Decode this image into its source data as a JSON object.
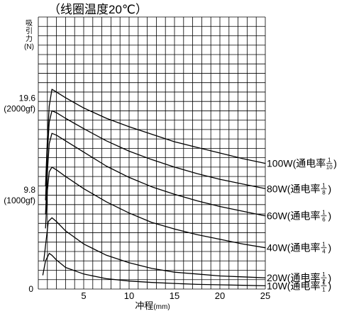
{
  "chart_data": {
    "type": "line",
    "title": "（线圈温度20℃）",
    "ylabel_chars": [
      "吸",
      "引",
      "力",
      "(N)"
    ],
    "xlabel": "冲程",
    "xlabel_unit": "(mm)",
    "xlim": [
      0,
      25
    ],
    "ylim": [
      0,
      29
    ],
    "x_ticks": [
      {
        "value": 5,
        "label": "5"
      },
      {
        "value": 10,
        "label": "10"
      },
      {
        "value": 15,
        "label": "15"
      },
      {
        "value": 20,
        "label": "20"
      },
      {
        "value": 25,
        "label": "25"
      }
    ],
    "y_ticks": [
      {
        "value": 0,
        "label": "0",
        "sub": ""
      },
      {
        "value": 9.8,
        "label": "9.8",
        "sub": "(1000gf)"
      },
      {
        "value": 19.6,
        "label": "19.6",
        "sub": "(2000gf)"
      }
    ],
    "grid": true,
    "series": [
      {
        "name": "100W",
        "duty_num": "1",
        "duty_den": "10",
        "points": [
          [
            0.8,
            11.0
          ],
          [
            1.0,
            16.0
          ],
          [
            1.2,
            19.5
          ],
          [
            1.5,
            21.3
          ],
          [
            2,
            21.0
          ],
          [
            3,
            20.4
          ],
          [
            5,
            19.3
          ],
          [
            7.5,
            18.2
          ],
          [
            10,
            17.3
          ],
          [
            12.5,
            16.5
          ],
          [
            15,
            15.7
          ],
          [
            17.5,
            15.1
          ],
          [
            20,
            14.5
          ],
          [
            22.5,
            13.9
          ],
          [
            25,
            13.4
          ]
        ]
      },
      {
        "name": "80W",
        "duty_num": "1",
        "duty_den": "8",
        "points": [
          [
            0.8,
            9.5
          ],
          [
            1.0,
            14.5
          ],
          [
            1.2,
            17.8
          ],
          [
            1.5,
            19.0
          ],
          [
            2,
            18.8
          ],
          [
            3,
            18.2
          ],
          [
            5,
            17.1
          ],
          [
            7.5,
            15.8
          ],
          [
            10,
            14.7
          ],
          [
            12.5,
            13.8
          ],
          [
            15,
            13.0
          ],
          [
            17.5,
            12.3
          ],
          [
            20,
            11.7
          ],
          [
            22.5,
            11.2
          ],
          [
            25,
            10.7
          ]
        ]
      },
      {
        "name": "60W",
        "duty_num": "1",
        "duty_den": "6",
        "points": [
          [
            0.8,
            8.0
          ],
          [
            1.0,
            12.5
          ],
          [
            1.2,
            15.5
          ],
          [
            1.5,
            16.6
          ],
          [
            2,
            16.4
          ],
          [
            3,
            15.8
          ],
          [
            5,
            14.6
          ],
          [
            7.5,
            13.1
          ],
          [
            10,
            11.9
          ],
          [
            12.5,
            10.9
          ],
          [
            15,
            10.1
          ],
          [
            17.5,
            9.4
          ],
          [
            20,
            8.8
          ],
          [
            22.5,
            8.3
          ],
          [
            25,
            7.8
          ]
        ]
      },
      {
        "name": "40W",
        "duty_num": "1",
        "duty_den": "4",
        "points": [
          [
            0.8,
            6.5
          ],
          [
            1.0,
            10.5
          ],
          [
            1.2,
            12.5
          ],
          [
            1.5,
            13.0
          ],
          [
            2,
            12.7
          ],
          [
            3,
            12.0
          ],
          [
            5,
            10.7
          ],
          [
            7.5,
            9.3
          ],
          [
            10,
            8.1
          ],
          [
            12.5,
            7.1
          ],
          [
            15,
            6.4
          ],
          [
            17.5,
            5.8
          ],
          [
            20,
            5.3
          ],
          [
            22.5,
            4.8
          ],
          [
            25,
            4.4
          ]
        ]
      },
      {
        "name": "20W",
        "duty_num": "1",
        "duty_den": "2",
        "points": [
          [
            0.6,
            3.0
          ],
          [
            0.9,
            5.5
          ],
          [
            1.1,
            7.2
          ],
          [
            1.5,
            7.6
          ],
          [
            2,
            7.2
          ],
          [
            3,
            6.2
          ],
          [
            5,
            4.8
          ],
          [
            7.5,
            3.6
          ],
          [
            10,
            2.8
          ],
          [
            12.5,
            2.2
          ],
          [
            15,
            1.8
          ],
          [
            17.5,
            1.6
          ],
          [
            20,
            1.4
          ],
          [
            22.5,
            1.3
          ],
          [
            25,
            1.2
          ]
        ]
      },
      {
        "name": "10W",
        "duty_num": "1",
        "duty_den": "1",
        "points": [
          [
            0.5,
            1.5
          ],
          [
            0.8,
            3.0
          ],
          [
            1.2,
            3.8
          ],
          [
            1.5,
            3.6
          ],
          [
            2,
            3.1
          ],
          [
            3,
            2.3
          ],
          [
            5,
            1.6
          ],
          [
            7.5,
            1.1
          ],
          [
            10,
            0.85
          ],
          [
            12.5,
            0.7
          ],
          [
            15,
            0.6
          ],
          [
            17.5,
            0.5
          ],
          [
            20,
            0.45
          ],
          [
            22.5,
            0.4
          ],
          [
            25,
            0.35
          ]
        ]
      }
    ],
    "series_label_open": "(通电率",
    "series_label_close": ")"
  }
}
